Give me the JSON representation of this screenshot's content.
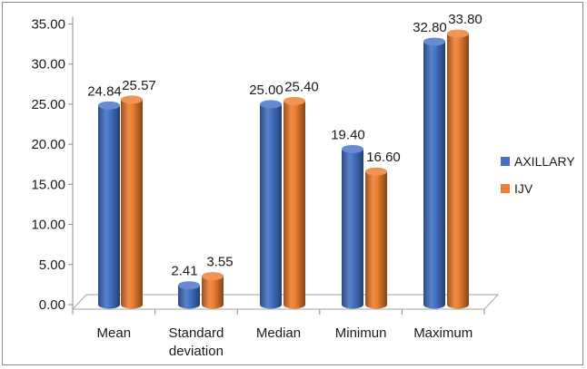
{
  "chart_data": {
    "type": "bar",
    "style": "3d-cylinder",
    "categories": [
      [
        "Mean"
      ],
      [
        "Standard",
        "deviation"
      ],
      [
        "Median"
      ],
      [
        "Minimun"
      ],
      [
        "Maximum"
      ]
    ],
    "series": [
      {
        "name": "AXILLARY",
        "color": "#4472C4",
        "values": [
          24.84,
          2.41,
          25.0,
          19.4,
          32.8
        ],
        "labels": [
          "24.84",
          "2.41",
          "25.00",
          "19.40",
          "32.80"
        ]
      },
      {
        "name": "IJV",
        "color": "#ED7D31",
        "values": [
          25.57,
          3.55,
          25.4,
          16.6,
          33.8
        ],
        "labels": [
          "25.57",
          "3.55",
          "25.40",
          "16.60",
          "33.80"
        ]
      }
    ],
    "yticks": [
      "0.00",
      "5.00",
      "10.00",
      "15.00",
      "20.00",
      "25.00",
      "30.00",
      "35.00"
    ],
    "ylim": [
      0,
      35
    ],
    "legend_position": "right",
    "gridlines": false
  }
}
